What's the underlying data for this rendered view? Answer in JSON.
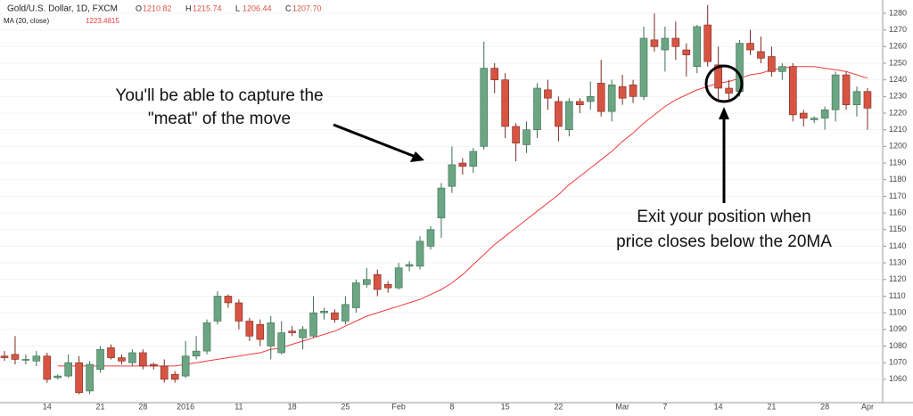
{
  "chart_data": {
    "type": "candlestick",
    "title": "Gold/U.S. Dollar, 1D, FXCM",
    "ohlc_header": [
      {
        "key": "O",
        "value": "1210.82"
      },
      {
        "key": "H",
        "value": "1215.74"
      },
      {
        "key": "L",
        "value": "1206.44"
      },
      {
        "key": "C",
        "value": "1207.70"
      }
    ],
    "annotations": [
      "You'll be able to capture the",
      "\"meat\" of the move",
      "Exit your position when",
      "price closes below the 20MA"
    ],
    "categories": [
      null,
      null,
      null,
      null,
      "14",
      null,
      null,
      null,
      null,
      "21",
      null,
      null,
      null,
      "28",
      null,
      null,
      null,
      "2016",
      null,
      null,
      null,
      null,
      "11",
      null,
      null,
      null,
      null,
      "18",
      null,
      null,
      null,
      null,
      "25",
      null,
      null,
      null,
      null,
      "Feb",
      null,
      null,
      null,
      null,
      "8",
      null,
      null,
      null,
      null,
      "15",
      null,
      null,
      null,
      null,
      "22",
      null,
      null,
      null,
      null,
      null,
      "Mar",
      null,
      null,
      null,
      "7",
      null,
      null,
      null,
      null,
      "14",
      null,
      null,
      null,
      null,
      "21",
      null,
      null,
      null,
      null,
      "28",
      null,
      null,
      null,
      "Apr"
    ],
    "open": [
      1074,
      1075,
      1072,
      1071,
      1074,
      1061,
      1062,
      1070,
      1053,
      1066,
      1079,
      1073,
      1070,
      1076,
      1069,
      1068,
      1063,
      1062,
      1074,
      1077,
      1095,
      1110,
      1106,
      1095,
      1093,
      1080,
      1076,
      1089,
      1085,
      1086,
      1100,
      1100,
      1095,
      1103,
      1117,
      1123,
      1117,
      1115,
      1128,
      1128,
      1140,
      1157,
      1176,
      1190,
      1188,
      1200,
      1247,
      1240,
      1212,
      1201,
      1210,
      1234,
      1227,
      1210,
      1227,
      1227,
      1238,
      1221,
      1236,
      1237,
      1230,
      1264,
      1258,
      1265,
      1258,
      1248,
      1273,
      1249,
      1235,
      1233,
      1262,
      1257,
      1254,
      1245,
      1248,
      1220,
      1216,
      1217,
      1222,
      1243,
      1225,
      1233
    ],
    "high": [
      1077,
      1086,
      1075,
      1077,
      1076,
      1063,
      1075,
      1074,
      1071,
      1080,
      1081,
      1075,
      1078,
      1078,
      1070,
      1072,
      1065,
      1083,
      1086,
      1096,
      1113,
      1111,
      1108,
      1097,
      1096,
      1098,
      1095,
      1092,
      1092,
      1110,
      1103,
      1102,
      1110,
      1120,
      1127,
      1126,
      1119,
      1130,
      1131,
      1146,
      1152,
      1178,
      1200,
      1193,
      1199,
      1263,
      1250,
      1244,
      1214,
      1215,
      1238,
      1240,
      1230,
      1229,
      1229,
      1239,
      1252,
      1240,
      1243,
      1240,
      1272,
      1280,
      1272,
      1275,
      1262,
      1273,
      1285,
      1260,
      1240,
      1264,
      1270,
      1266,
      1260,
      1250,
      1250,
      1222,
      1218,
      1224,
      1245,
      1245,
      1236,
      1235
    ],
    "low": [
      1071,
      1069,
      1069,
      1068,
      1058,
      1060,
      1061,
      1051,
      1051,
      1064,
      1072,
      1069,
      1068,
      1066,
      1066,
      1058,
      1058,
      1061,
      1072,
      1075,
      1093,
      1103,
      1090,
      1083,
      1080,
      1072,
      1075,
      1086,
      1078,
      1085,
      1096,
      1094,
      1093,
      1100,
      1115,
      1110,
      1112,
      1114,
      1125,
      1126,
      1138,
      1145,
      1172,
      1183,
      1184,
      1198,
      1232,
      1205,
      1191,
      1196,
      1205,
      1222,
      1203,
      1206,
      1220,
      1222,
      1218,
      1215,
      1225,
      1226,
      1228,
      1257,
      1245,
      1252,
      1242,
      1244,
      1248,
      1228,
      1228,
      1230,
      1255,
      1250,
      1242,
      1240,
      1215,
      1212,
      1214,
      1210,
      1215,
      1222,
      1218,
      1210
    ],
    "close": [
      1073,
      1072,
      1072,
      1074,
      1060,
      1062,
      1070,
      1052,
      1069,
      1078,
      1073,
      1071,
      1076,
      1068,
      1068,
      1060,
      1060,
      1074,
      1077,
      1094,
      1110,
      1106,
      1095,
      1086,
      1084,
      1094,
      1088,
      1088,
      1090,
      1100,
      1101,
      1096,
      1105,
      1118,
      1120,
      1114,
      1115,
      1127,
      1129,
      1143,
      1150,
      1175,
      1189,
      1188,
      1197,
      1247,
      1240,
      1212,
      1202,
      1210,
      1235,
      1229,
      1212,
      1227,
      1225,
      1230,
      1221,
      1237,
      1229,
      1230,
      1265,
      1260,
      1265,
      1260,
      1255,
      1272,
      1251,
      1235,
      1232,
      1262,
      1258,
      1253,
      1245,
      1248,
      1219,
      1217,
      1217,
      1222,
      1243,
      1225,
      1233,
      1223
    ],
    "up_color": "#6ba583",
    "down_color": "#d75442",
    "indicator": {
      "name": "MA (20, close)",
      "value": "1223.4815",
      "color": "#f23b3b",
      "values": [
        null,
        null,
        null,
        null,
        null,
        1068,
        1068,
        1068,
        1068,
        1068,
        1068,
        1068,
        1068,
        1068,
        1068,
        1068,
        1068,
        1069,
        1070,
        1071,
        1072,
        1073,
        1074,
        1075,
        1076,
        1078,
        1079,
        1081,
        1083,
        1085,
        1087,
        1089,
        1092,
        1095,
        1098,
        1100,
        1102,
        1104,
        1106,
        1108,
        1111,
        1114,
        1118,
        1123,
        1129,
        1135,
        1141,
        1146,
        1151,
        1156,
        1161,
        1166,
        1171,
        1177,
        1182,
        1187,
        1192,
        1197,
        1203,
        1208,
        1214,
        1219,
        1224,
        1228,
        1231,
        1234,
        1236,
        1238,
        1239,
        1241,
        1243,
        1244,
        1246,
        1247,
        1248,
        1248,
        1248,
        1247,
        1246,
        1245,
        1243,
        1241
      ]
    },
    "ylim": [
      1046,
      1288
    ],
    "yticks": [
      1060,
      1070,
      1080,
      1090,
      1100,
      1110,
      1120,
      1130,
      1140,
      1150,
      1160,
      1170,
      1180,
      1190,
      1200,
      1210,
      1220,
      1230,
      1240,
      1250,
      1260,
      1270,
      1280
    ],
    "grid": true
  }
}
